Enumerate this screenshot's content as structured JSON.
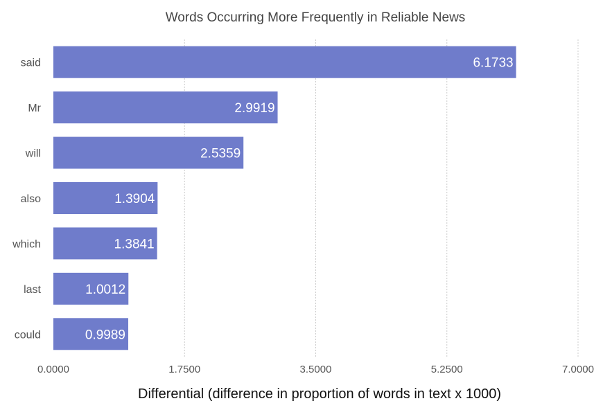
{
  "chart_data": {
    "type": "bar",
    "orientation": "horizontal",
    "title": "Words Occurring More Frequently in Reliable News",
    "xlabel": "Differential (difference in proportion of words in text x 1000)",
    "ylabel": "",
    "categories": [
      "said",
      "Mr",
      "will",
      "also",
      "which",
      "last",
      "could"
    ],
    "values": [
      6.1733,
      2.9919,
      2.5359,
      1.3904,
      1.3841,
      1.0012,
      0.9989
    ],
    "value_labels": [
      "6.1733",
      "2.9919",
      "2.5359",
      "1.3904",
      "1.3841",
      "1.0012",
      "0.9989"
    ],
    "xlim": [
      0,
      7
    ],
    "xticks": [
      0,
      1.75,
      3.5,
      5.25,
      7
    ],
    "xtick_labels": [
      "0.0000",
      "1.7500",
      "3.5000",
      "5.2500",
      "7.0000"
    ],
    "grid": true,
    "bar_color": "#6f7ccb"
  }
}
